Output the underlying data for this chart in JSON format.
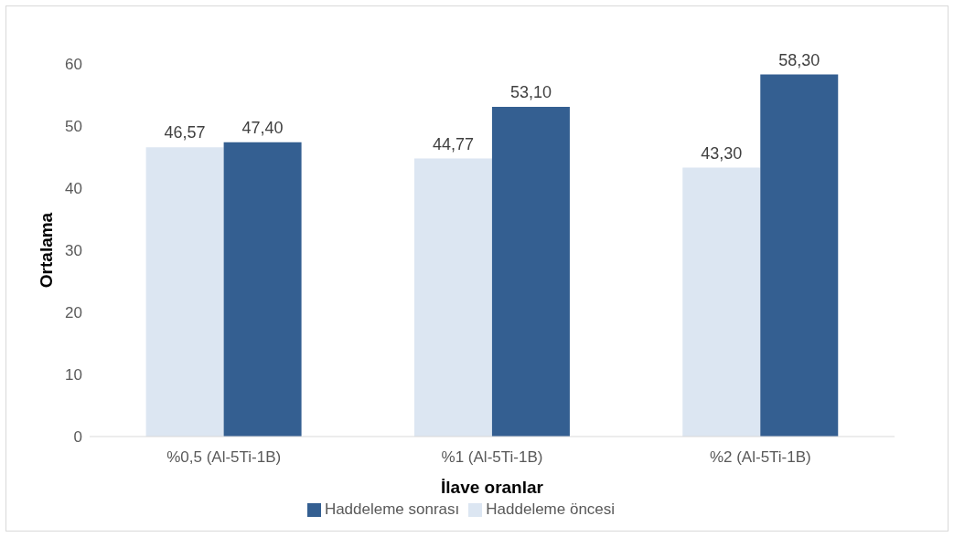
{
  "chart_data": {
    "type": "bar",
    "xlabel": "İlave oranlar",
    "ylabel": "Ortalama",
    "categories": [
      "%0,5 (Al-5Ti-1B)",
      "%1 (Al-5Ti-1B)",
      "%2 (Al-5Ti-1B)"
    ],
    "series": [
      {
        "name": "Haddeleme öncesi",
        "color": "#dce6f2",
        "values": [
          46.57,
          44.77,
          43.3
        ],
        "value_labels": [
          "46,57",
          "44,77",
          "43,30"
        ]
      },
      {
        "name": "Haddeleme sonrası",
        "color": "#345f91",
        "values": [
          47.4,
          53.1,
          58.3
        ],
        "value_labels": [
          "47,40",
          "53,10",
          "58,30"
        ]
      }
    ],
    "ylim": [
      0,
      60
    ],
    "yticks": [
      0,
      10,
      20,
      30,
      40,
      50,
      60
    ],
    "grid": false,
    "legend": "bottom"
  }
}
